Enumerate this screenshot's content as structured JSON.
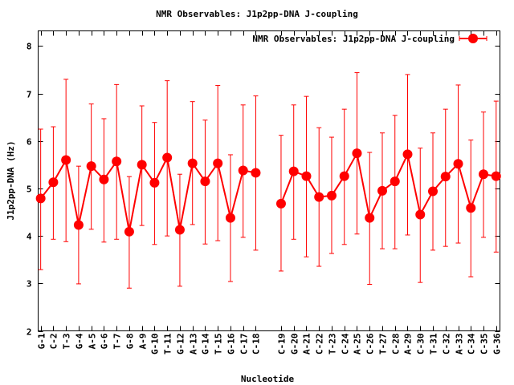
{
  "chart_data": {
    "type": "line",
    "title": "NMR Observables: J1p2pp-DNA J-coupling",
    "xlabel": "Nucleotide",
    "ylabel": "J1p2pp-DNA (Hz)",
    "ylim": [
      2,
      8.32
    ],
    "xlim": [
      0.8,
      37.3
    ],
    "yticks": [
      2,
      3,
      4,
      5,
      6,
      7,
      8
    ],
    "grid": false,
    "legend": {
      "label": "NMR Observables: J1p2pp-DNA J-coupling",
      "placement": "top-right"
    },
    "series_color": "#ff0000",
    "segments": [
      {
        "points": [
          {
            "label": "G-1",
            "pos": 1,
            "y": 4.79,
            "ymax": 6.25,
            "ymin": 3.29
          },
          {
            "label": "C-2",
            "pos": 2,
            "y": 5.13,
            "ymax": 6.3,
            "ymin": 3.93
          },
          {
            "label": "T-3",
            "pos": 3,
            "y": 5.6,
            "ymax": 7.3,
            "ymin": 3.88
          },
          {
            "label": "G-4",
            "pos": 4,
            "y": 4.23,
            "ymax": 5.47,
            "ymin": 2.99
          },
          {
            "label": "A-5",
            "pos": 5,
            "y": 5.47,
            "ymax": 6.78,
            "ymin": 4.14
          },
          {
            "label": "G-6",
            "pos": 6,
            "y": 5.19,
            "ymax": 6.47,
            "ymin": 3.87
          },
          {
            "label": "T-7",
            "pos": 7,
            "y": 5.57,
            "ymax": 7.19,
            "ymin": 3.93
          },
          {
            "label": "G-8",
            "pos": 8,
            "y": 4.09,
            "ymax": 5.25,
            "ymin": 2.9
          },
          {
            "label": "A-9",
            "pos": 9,
            "y": 5.5,
            "ymax": 6.74,
            "ymin": 4.22
          },
          {
            "label": "G-10",
            "pos": 10,
            "y": 5.12,
            "ymax": 6.39,
            "ymin": 3.82
          },
          {
            "label": "T-11",
            "pos": 11,
            "y": 5.65,
            "ymax": 7.27,
            "ymin": 4.0
          },
          {
            "label": "G-12",
            "pos": 12,
            "y": 4.13,
            "ymax": 5.3,
            "ymin": 2.94
          },
          {
            "label": "A-13",
            "pos": 13,
            "y": 5.53,
            "ymax": 6.83,
            "ymin": 4.24
          },
          {
            "label": "G-14",
            "pos": 14,
            "y": 5.15,
            "ymax": 6.44,
            "ymin": 3.83
          },
          {
            "label": "T-15",
            "pos": 15,
            "y": 5.53,
            "ymax": 7.17,
            "ymin": 3.9
          },
          {
            "label": "G-16",
            "pos": 16,
            "y": 4.38,
            "ymax": 5.71,
            "ymin": 3.04
          },
          {
            "label": "C-17",
            "pos": 17,
            "y": 5.38,
            "ymax": 6.76,
            "ymin": 3.97
          },
          {
            "label": "C-18",
            "pos": 18,
            "y": 5.33,
            "ymax": 6.95,
            "ymin": 3.7
          }
        ]
      },
      {
        "points": [
          {
            "label": "C-19",
            "pos": 20,
            "y": 4.68,
            "ymax": 6.12,
            "ymin": 3.26
          },
          {
            "label": "G-20",
            "pos": 21,
            "y": 5.36,
            "ymax": 6.76,
            "ymin": 3.93
          },
          {
            "label": "A-21",
            "pos": 22,
            "y": 5.26,
            "ymax": 6.94,
            "ymin": 3.56
          },
          {
            "label": "C-22",
            "pos": 23,
            "y": 4.82,
            "ymax": 6.28,
            "ymin": 3.36
          },
          {
            "label": "T-23",
            "pos": 24,
            "y": 4.85,
            "ymax": 6.08,
            "ymin": 3.63
          },
          {
            "label": "C-24",
            "pos": 25,
            "y": 5.26,
            "ymax": 6.67,
            "ymin": 3.82
          },
          {
            "label": "A-25",
            "pos": 26,
            "y": 5.74,
            "ymax": 7.44,
            "ymin": 4.04
          },
          {
            "label": "C-26",
            "pos": 27,
            "y": 4.38,
            "ymax": 5.76,
            "ymin": 2.98
          },
          {
            "label": "T-27",
            "pos": 28,
            "y": 4.95,
            "ymax": 6.17,
            "ymin": 3.73
          },
          {
            "label": "C-28",
            "pos": 29,
            "y": 5.15,
            "ymax": 6.54,
            "ymin": 3.73
          },
          {
            "label": "A-29",
            "pos": 30,
            "y": 5.72,
            "ymax": 7.4,
            "ymin": 4.02
          },
          {
            "label": "C-30",
            "pos": 31,
            "y": 4.45,
            "ymax": 5.85,
            "ymin": 3.02
          },
          {
            "label": "T-31",
            "pos": 32,
            "y": 4.94,
            "ymax": 6.17,
            "ymin": 3.7
          },
          {
            "label": "C-32",
            "pos": 33,
            "y": 5.25,
            "ymax": 6.67,
            "ymin": 3.78
          },
          {
            "label": "A-33",
            "pos": 34,
            "y": 5.52,
            "ymax": 7.18,
            "ymin": 3.85
          },
          {
            "label": "C-34",
            "pos": 35,
            "y": 4.59,
            "ymax": 6.02,
            "ymin": 3.14
          },
          {
            "label": "C-35",
            "pos": 36,
            "y": 5.3,
            "ymax": 6.61,
            "ymin": 3.97
          },
          {
            "label": "G-36",
            "pos": 37,
            "y": 5.26,
            "ymax": 6.84,
            "ymin": 3.66
          }
        ]
      }
    ]
  }
}
